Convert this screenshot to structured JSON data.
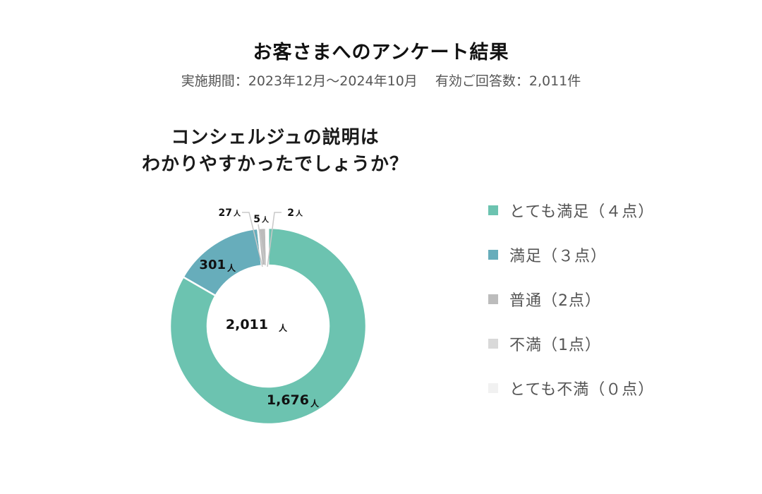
{
  "header": {
    "title": "お客さまへのアンケート結果",
    "subtitle": "実施期間：2023年12月〜2024年10月　 有効ご回答数：2,011件"
  },
  "question": {
    "line1": "コンシェルジュの説明は",
    "line2": "わかりやすかったでしょうか？"
  },
  "center_label": {
    "value": "2,011",
    "unit": "人"
  },
  "slice_labels": [
    {
      "value": "1,676",
      "unit": "人"
    },
    {
      "value": "301",
      "unit": "人"
    },
    {
      "value": "27",
      "unit": "人"
    },
    {
      "value": "5",
      "unit": "人"
    },
    {
      "value": "2",
      "unit": "人"
    }
  ],
  "legend": [
    {
      "label": "とても満足（４点）",
      "color": "#6cc3b0"
    },
    {
      "label": "満足（３点）",
      "color": "#67adbb"
    },
    {
      "label": "普通（2点）",
      "color": "#bcbcbc"
    },
    {
      "label": "不満（1点）",
      "color": "#d9d9d9"
    },
    {
      "label": "とても不満（０点）",
      "color": "#f1f1f1"
    }
  ],
  "chart_data": {
    "type": "pie",
    "title": "コンシェルジュの説明はわかりやすかったでしょうか？",
    "categories": [
      "とても満足（４点）",
      "満足（３点）",
      "普通（2点）",
      "不満（1点）",
      "とても不満（０点）"
    ],
    "values": [
      1676,
      301,
      27,
      5,
      2
    ],
    "unit": "人",
    "total": 2011,
    "donut": true,
    "center_text": "2,011人",
    "colors": [
      "#6cc3b0",
      "#67adbb",
      "#bcbcbc",
      "#d9d9d9",
      "#f1f1f1"
    ],
    "legend_position": "right",
    "start_angle": "12 o'clock",
    "direction": "clockwise"
  }
}
